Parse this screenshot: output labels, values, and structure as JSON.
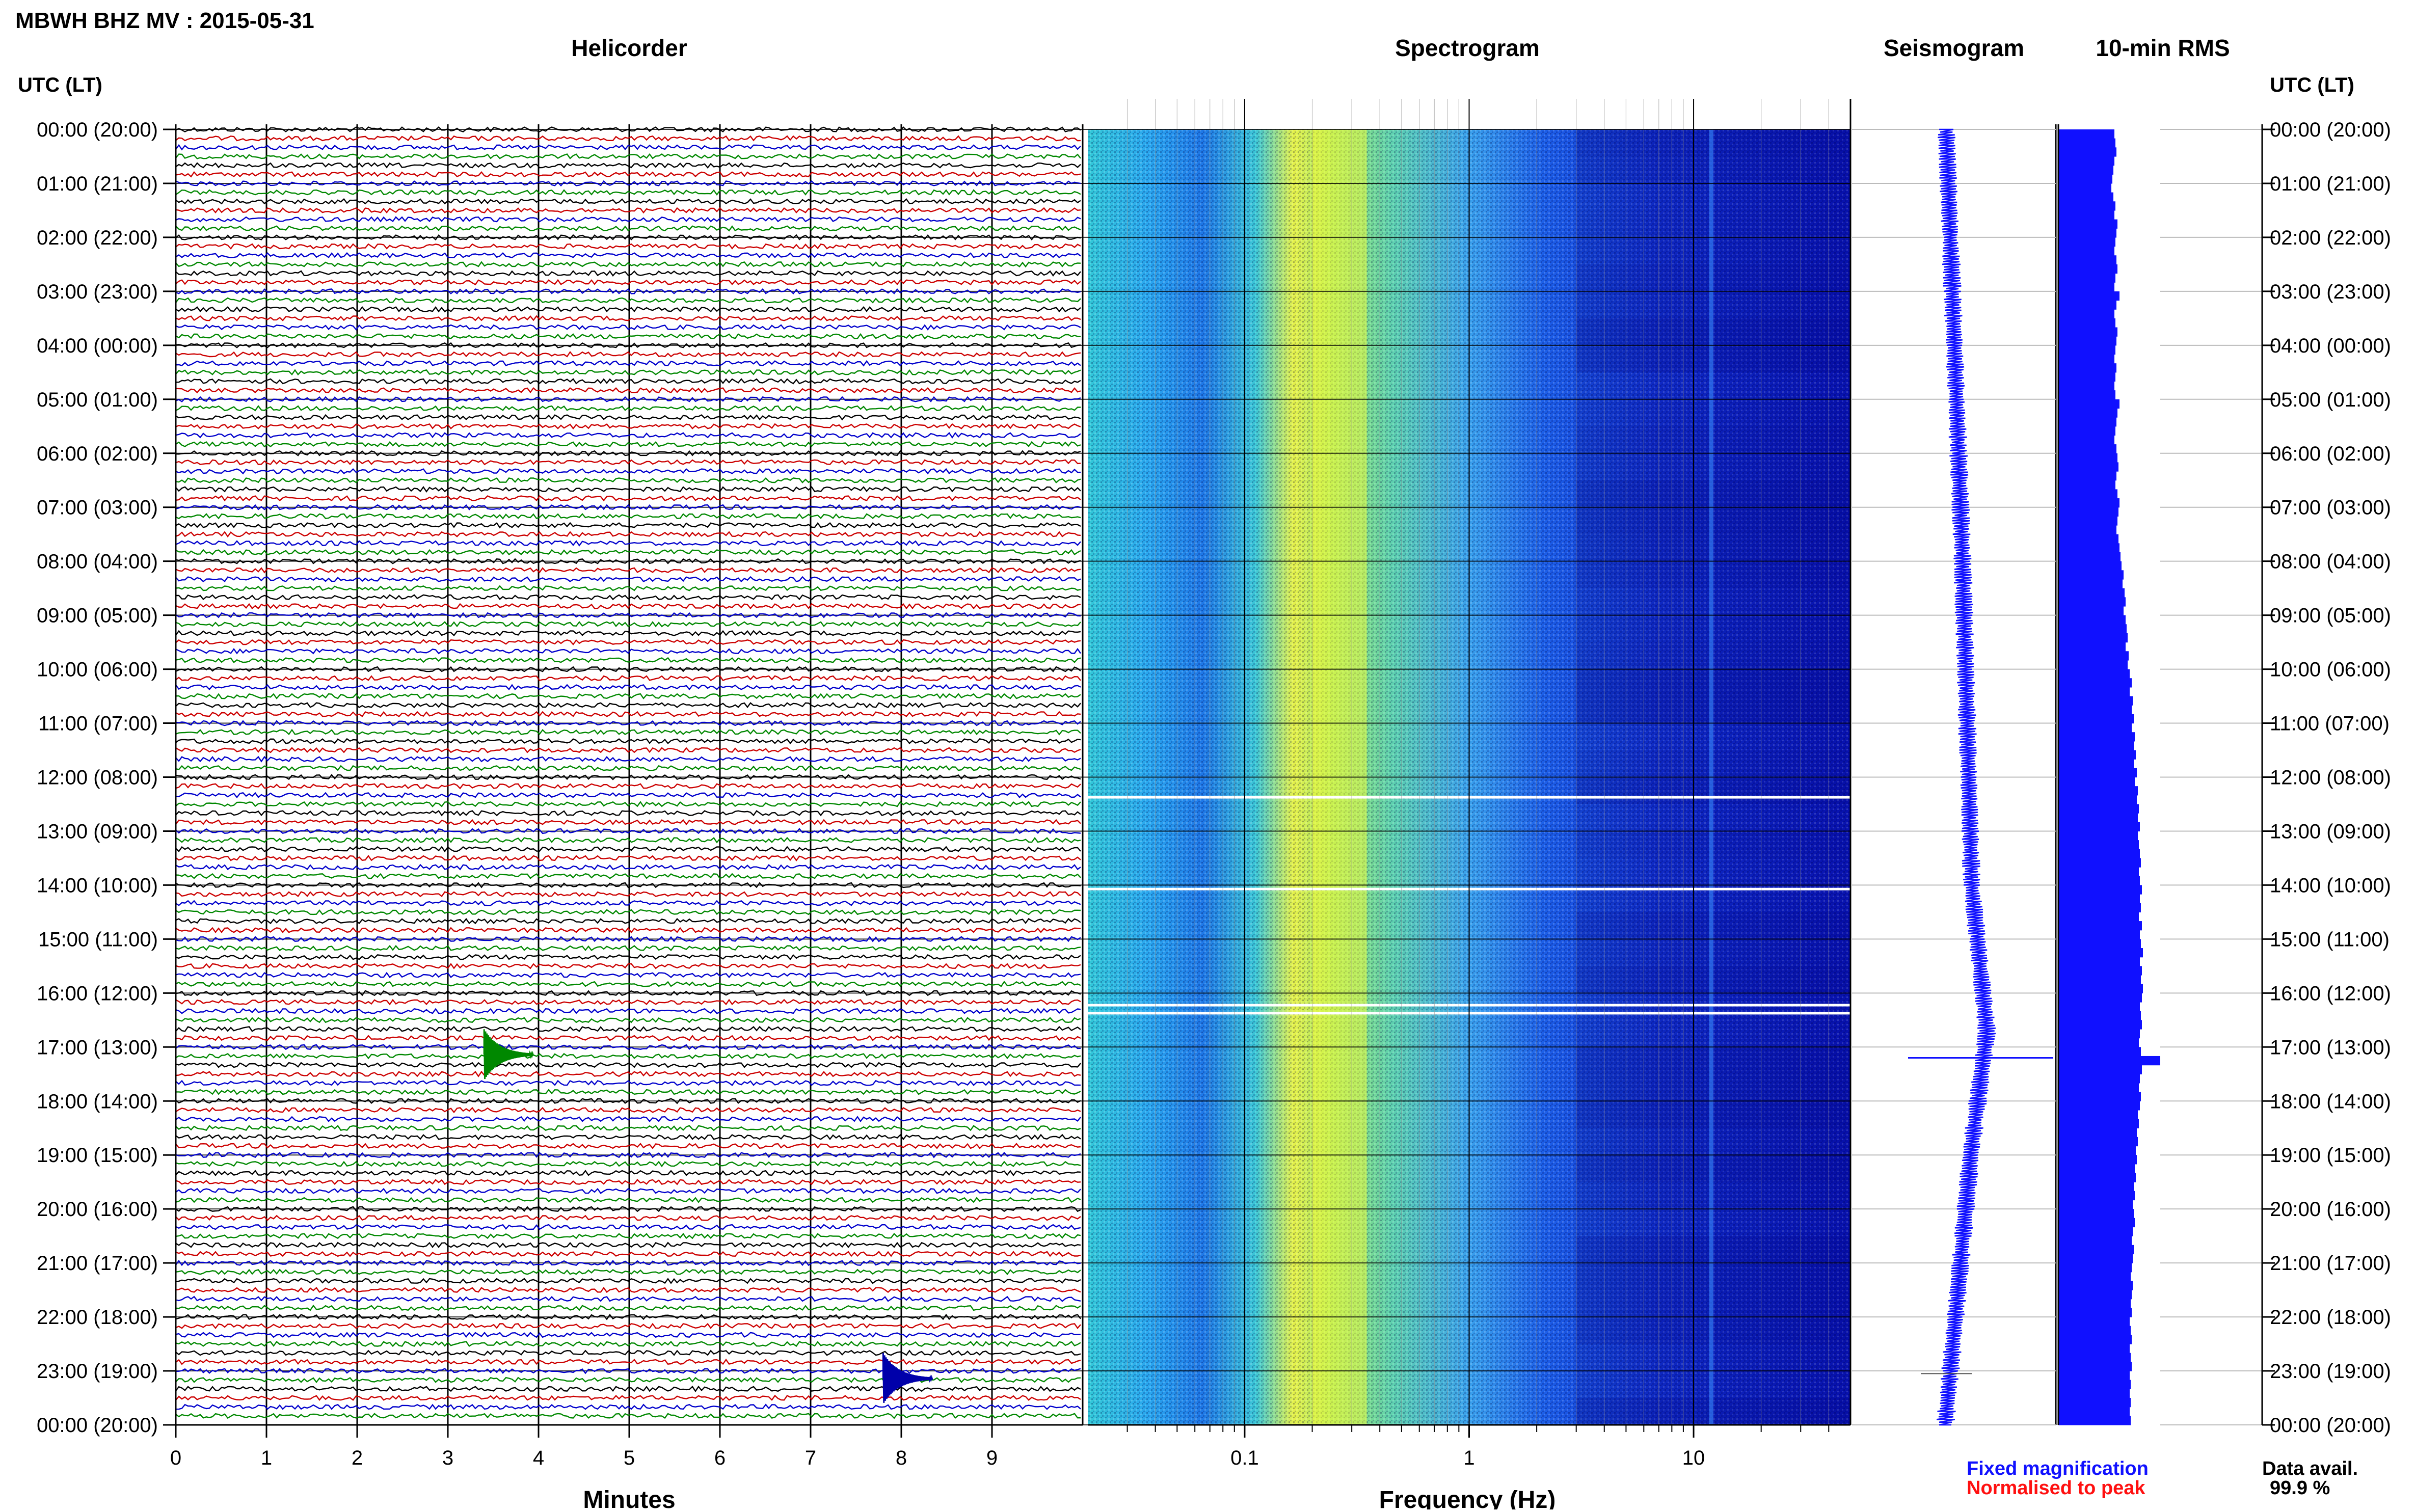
{
  "header": {
    "title": "MBWH BHZ MV : 2015-05-31"
  },
  "panels": {
    "helicorder": "Helicorder",
    "spectrogram": "Spectrogram",
    "seismogram": "Seismogram",
    "rms": "10-min RMS"
  },
  "time_axis_label": "UTC (LT)",
  "time_labels": [
    "00:00 (20:00)",
    "01:00 (21:00)",
    "02:00 (22:00)",
    "03:00 (23:00)",
    "04:00 (00:00)",
    "05:00 (01:00)",
    "06:00 (02:00)",
    "07:00 (03:00)",
    "08:00 (04:00)",
    "09:00 (05:00)",
    "10:00 (06:00)",
    "11:00 (07:00)",
    "12:00 (08:00)",
    "13:00 (09:00)",
    "14:00 (10:00)",
    "15:00 (11:00)",
    "16:00 (12:00)",
    "17:00 (13:00)",
    "18:00 (14:00)",
    "19:00 (15:00)",
    "20:00 (16:00)",
    "21:00 (17:00)",
    "22:00 (18:00)",
    "23:00 (19:00)",
    "00:00 (20:00)"
  ],
  "legend": {
    "fixed": "Fixed magnification",
    "normalised": "Normalised to peak",
    "fixed_color": "#1010ff",
    "normalised_color": "#ff1010"
  },
  "data_avail": {
    "label": "Data avail.",
    "value": "99.9 %"
  },
  "chart_data": [
    {
      "type": "line",
      "title": "Helicorder",
      "xlabel": "Minutes",
      "xticks": [
        "0",
        "1",
        "2",
        "3",
        "4",
        "5",
        "6",
        "7",
        "8",
        "9"
      ],
      "xlim": [
        0,
        10
      ],
      "rows": 144,
      "trace_colors": [
        "#000000",
        "#cc0000",
        "#0000cc",
        "#008800"
      ],
      "events": [
        {
          "time_utc": "17:00",
          "minute": 3.4,
          "color": "#008800"
        },
        {
          "time_utc": "23:00",
          "minute": 7.8,
          "color": "#0000aa"
        }
      ]
    },
    {
      "type": "heatmap",
      "title": "Spectrogram",
      "xlabel": "Frequency (Hz)",
      "xscale": "log",
      "xticks": [
        "0.1",
        "1",
        "10"
      ],
      "xlim": [
        0.02,
        50
      ],
      "colormap": [
        "#0000aa",
        "#0044ff",
        "#33aaff",
        "#33ddcc",
        "#ccee33",
        "#ffff00"
      ],
      "peak_band_hz": [
        0.2,
        0.35
      ],
      "line_hz": 12
    },
    {
      "type": "line",
      "title": "Seismogram",
      "color": "#1010ff",
      "event_time_utc": "17:00"
    },
    {
      "type": "bar",
      "title": "10-min RMS",
      "color": "#1010ff",
      "values": [
        0.55,
        0.56,
        0.57,
        0.55,
        0.54,
        0.53,
        0.52,
        0.54,
        0.56,
        0.55,
        0.58,
        0.57,
        0.56,
        0.55,
        0.57,
        0.58,
        0.56,
        0.55,
        0.6,
        0.57,
        0.55,
        0.56,
        0.58,
        0.57,
        0.56,
        0.55,
        0.57,
        0.56,
        0.55,
        0.56,
        0.6,
        0.58,
        0.57,
        0.56,
        0.55,
        0.57,
        0.58,
        0.59,
        0.57,
        0.56,
        0.58,
        0.6,
        0.59,
        0.58,
        0.57,
        0.59,
        0.6,
        0.61,
        0.62,
        0.64,
        0.63,
        0.65,
        0.66,
        0.64,
        0.66,
        0.67,
        0.68,
        0.66,
        0.69,
        0.68,
        0.7,
        0.72,
        0.7,
        0.73,
        0.72,
        0.74,
        0.72,
        0.75,
        0.74,
        0.76,
        0.74,
        0.77,
        0.75,
        0.78,
        0.77,
        0.79,
        0.78,
        0.8,
        0.78,
        0.79,
        0.8,
        0.81,
        0.79,
        0.8,
        0.82,
        0.8,
        0.81,
        0.79,
        0.82,
        0.8,
        0.81,
        0.83,
        0.8,
        0.82,
        0.81,
        0.83,
        0.82,
        0.8,
        0.81,
        0.82,
        0.8,
        0.79,
        0.81,
        1.0,
        0.82,
        0.8,
        0.79,
        0.81,
        0.8,
        0.78,
        0.79,
        0.77,
        0.78,
        0.76,
        0.77,
        0.75,
        0.76,
        0.74,
        0.75,
        0.73,
        0.74,
        0.75,
        0.73,
        0.72,
        0.74,
        0.73,
        0.72,
        0.71,
        0.73,
        0.72,
        0.71,
        0.72,
        0.7,
        0.71,
        0.72,
        0.7,
        0.71,
        0.72,
        0.7,
        0.71,
        0.7,
        0.71,
        0.7,
        0.71
      ]
    }
  ]
}
